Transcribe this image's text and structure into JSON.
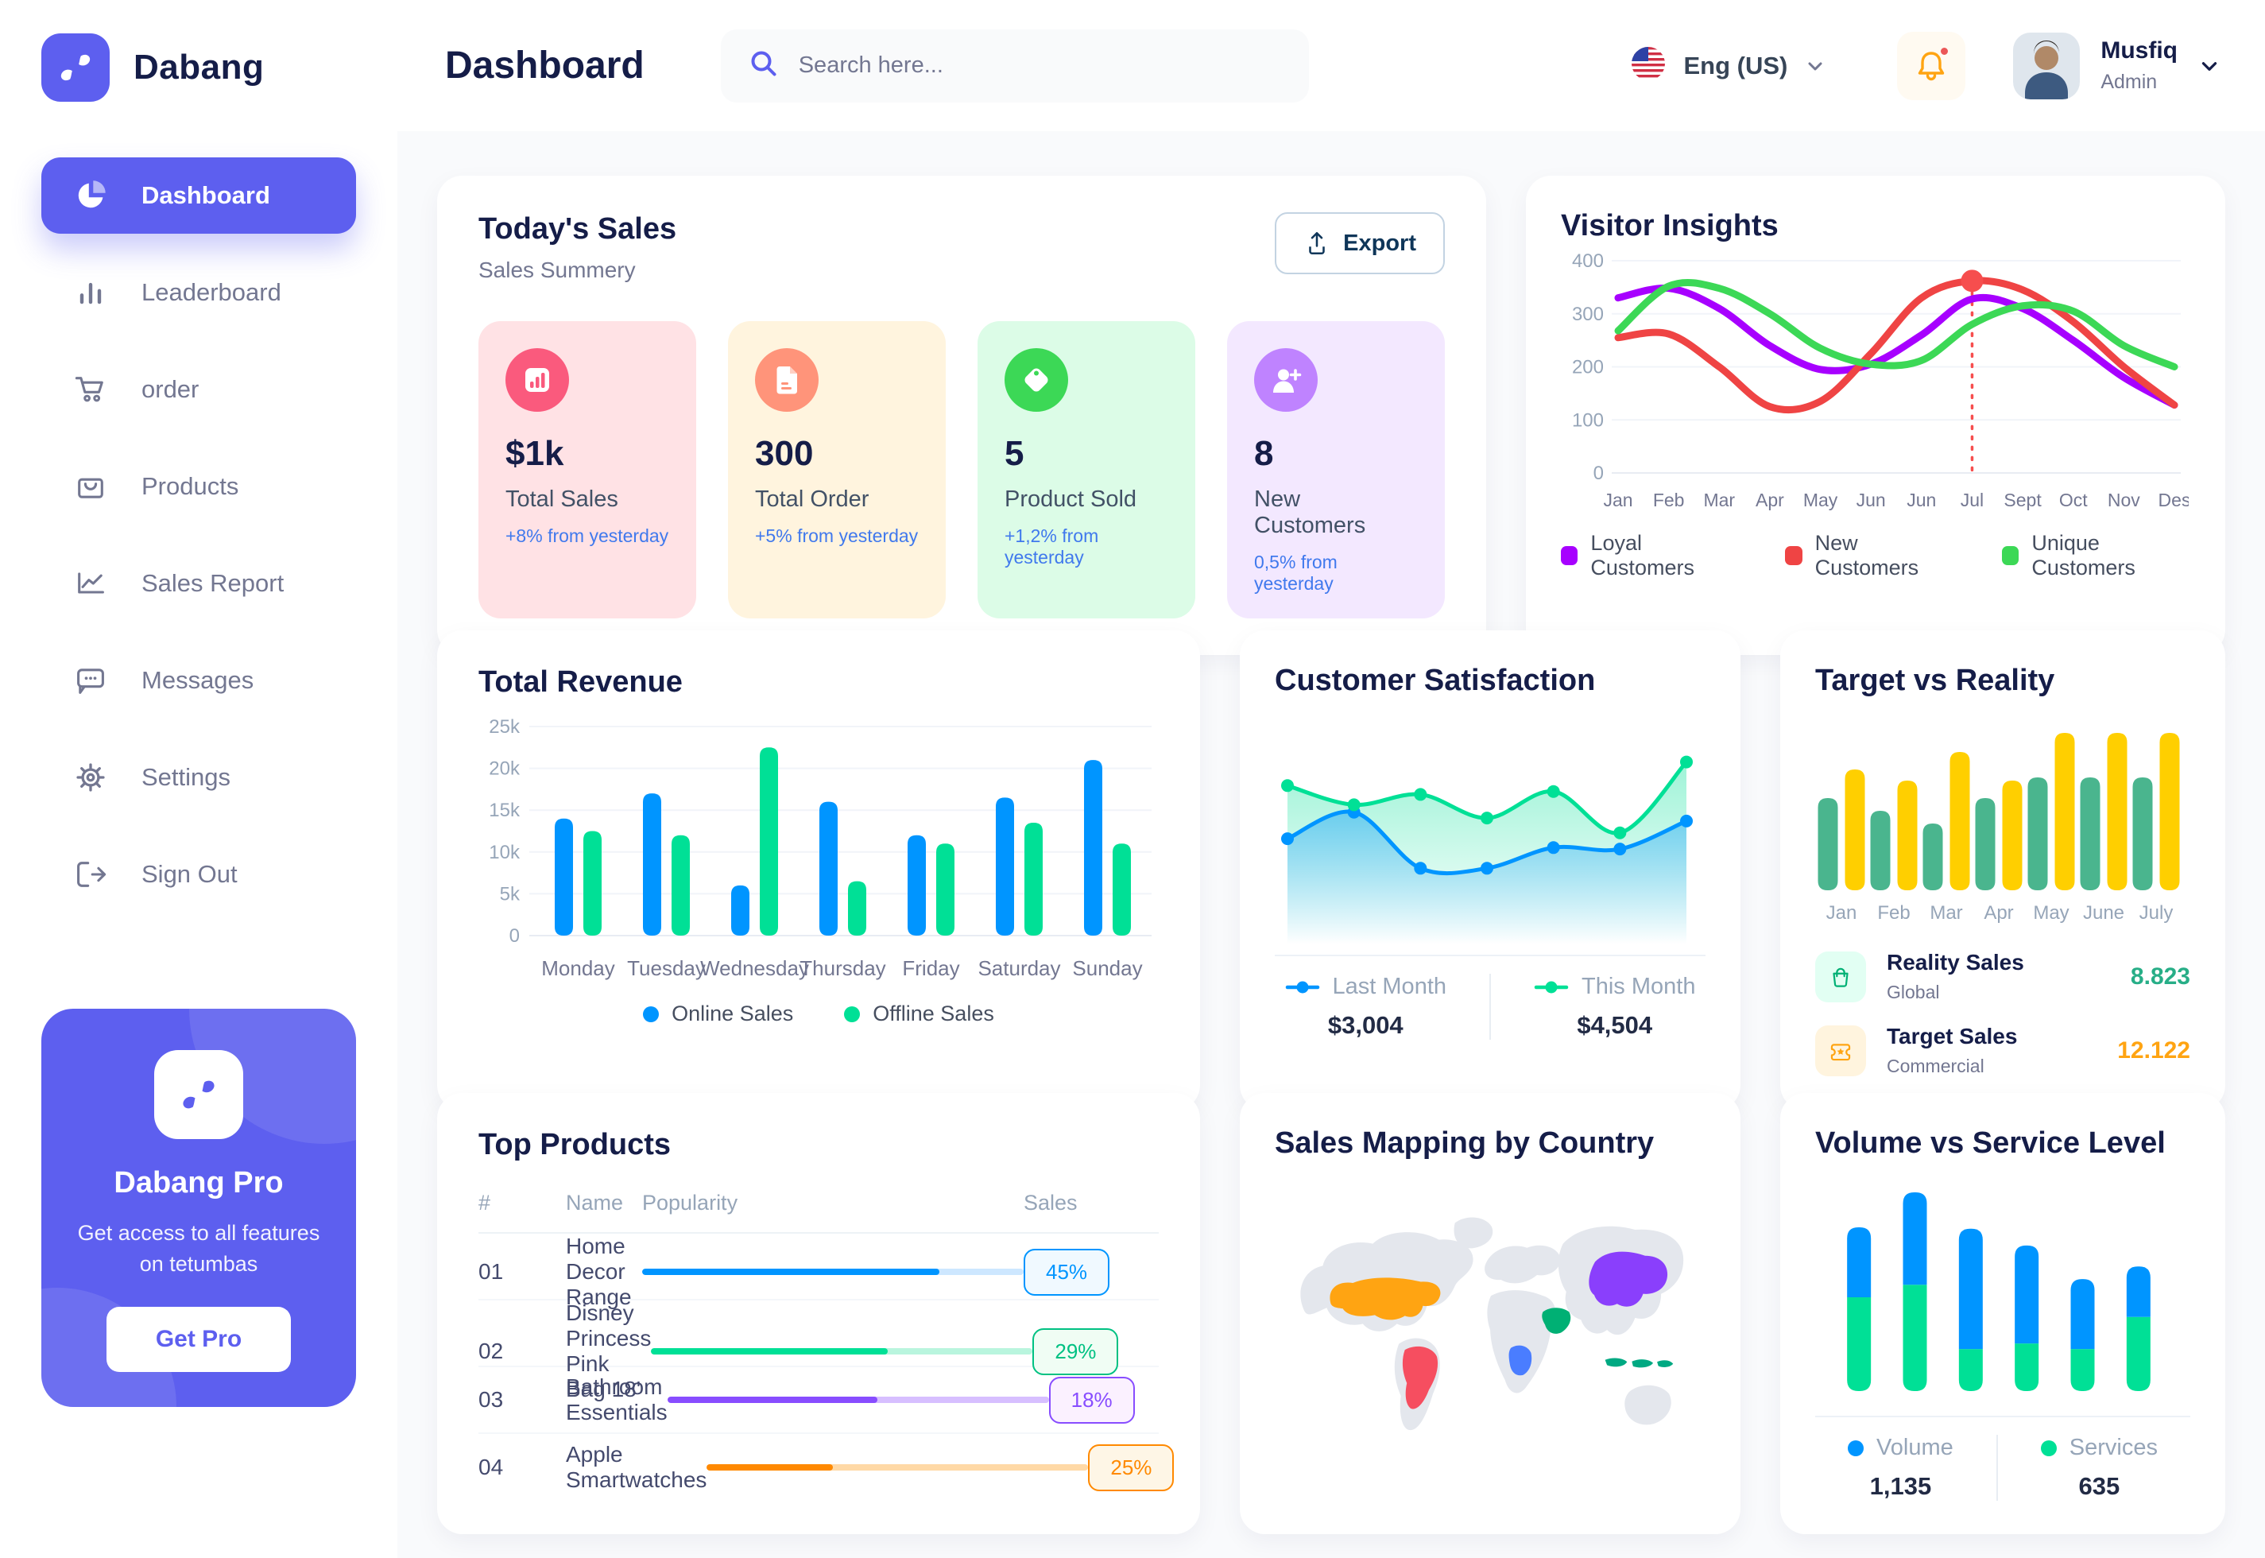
{
  "app": {
    "brand": "Dabang",
    "accent_color": "#5D5FEF",
    "title_color": "#151D48",
    "muted_color": "#737791"
  },
  "header": {
    "title": "Dashboard",
    "search_placeholder": "Search here...",
    "language": "Eng (US)",
    "user_name": "Musfiq",
    "user_role": "Admin"
  },
  "sidebar": {
    "items": [
      {
        "label": "Dashboard",
        "icon": "pie-chart",
        "active": true
      },
      {
        "label": "Leaderboard",
        "icon": "bar-chart",
        "active": false
      },
      {
        "label": "order",
        "icon": "cart",
        "active": false
      },
      {
        "label": "Products",
        "icon": "bag",
        "active": false
      },
      {
        "label": "Sales Report",
        "icon": "line-chart",
        "active": false
      },
      {
        "label": "Messages",
        "icon": "chat",
        "active": false
      },
      {
        "label": "Settings",
        "icon": "gear",
        "active": false
      },
      {
        "label": "Sign Out",
        "icon": "sign-out",
        "active": false
      }
    ],
    "pro_card": {
      "title": "Dabang Pro",
      "subtitle": "Get access to all features on tetumbas",
      "button": "Get Pro"
    }
  },
  "today_sales": {
    "title": "Today's Sales",
    "subtitle": "Sales Summery",
    "export_label": "Export",
    "stats": [
      {
        "value": "$1k",
        "label": "Total Sales",
        "delta": "+8% from yesterday",
        "bg": "#FFE2E5",
        "icon_bg": "#FA5A7D",
        "icon": "chart"
      },
      {
        "value": "300",
        "label": "Total Order",
        "delta": "+5% from yesterday",
        "bg": "#FFF4DE",
        "icon_bg": "#FF947A",
        "icon": "file"
      },
      {
        "value": "5",
        "label": "Product Sold",
        "delta": "+1,2% from yesterday",
        "bg": "#DCFCE7",
        "icon_bg": "#3CD856",
        "icon": "tag"
      },
      {
        "value": "8",
        "label": "New Customers",
        "delta": "0,5% from yesterday",
        "bg": "#F3E8FF",
        "icon_bg": "#BF83FF",
        "icon": "user-plus"
      }
    ]
  },
  "top_products": {
    "title": "Top Products",
    "columns": [
      "#",
      "Name",
      "Popularity",
      "Sales"
    ],
    "rows": [
      {
        "num": "01",
        "name": "Home Decor Range",
        "popularity": 78,
        "bar_color": "#0095FF",
        "track_color": "#CDE7FF",
        "sales": "45%",
        "badge_bg": "#F0F9FF",
        "badge_color": "#0095FF"
      },
      {
        "num": "02",
        "name": "Disney Princess Pink Bag 18'",
        "popularity": 62,
        "bar_color": "#00E096",
        "track_color": "#B9F5DE",
        "sales": "29%",
        "badge_bg": "#F0FDF4",
        "badge_color": "#00C182"
      },
      {
        "num": "03",
        "name": "Bathroom Essentials",
        "popularity": 55,
        "bar_color": "#884DFF",
        "track_color": "#D7BFFF",
        "sales": "18%",
        "badge_bg": "#FBF1FF",
        "badge_color": "#884DFF"
      },
      {
        "num": "04",
        "name": "Apple Smartwatches",
        "popularity": 33,
        "bar_color": "#FF8900",
        "track_color": "#FFD9A6",
        "sales": "25%",
        "badge_bg": "#FEF6E6",
        "badge_color": "#FF8900"
      }
    ]
  },
  "chart_data": [
    {
      "id": "visitor_insights",
      "type": "line",
      "title": "Visitor Insights",
      "x": [
        "Jan",
        "Feb",
        "Mar",
        "Apr",
        "May",
        "Jun",
        "Jun",
        "Jul",
        "Sept",
        "Oct",
        "Nov",
        "Des"
      ],
      "ylim": [
        0,
        400
      ],
      "yticks": [
        0,
        100,
        200,
        300,
        400
      ],
      "grid": true,
      "highlight_x_index": 7,
      "highlight_color": "#F64E4E",
      "legend_position": "bottom",
      "series": [
        {
          "name": "Loyal Customers",
          "color": "#A700FF",
          "values": [
            330,
            348,
            310,
            240,
            195,
            205,
            260,
            328,
            310,
            250,
            180,
            128
          ]
        },
        {
          "name": "New Customers",
          "color": "#EF4444",
          "values": [
            255,
            262,
            200,
            125,
            135,
            225,
            330,
            362,
            345,
            285,
            200,
            128
          ]
        },
        {
          "name": "Unique Customers",
          "color": "#3CD856",
          "values": [
            268,
            352,
            348,
            300,
            235,
            205,
            212,
            280,
            315,
            305,
            240,
            200
          ]
        }
      ]
    },
    {
      "id": "total_revenue",
      "type": "bar",
      "title": "Total Revenue",
      "categories": [
        "Monday",
        "Tuesday",
        "Wednesday",
        "Thursday",
        "Friday",
        "Saturday",
        "Sunday"
      ],
      "ylim": [
        0,
        25
      ],
      "yticks": [
        0,
        5,
        10,
        15,
        20,
        25
      ],
      "ytick_labels": [
        "0",
        "5k",
        "10k",
        "15k",
        "20k",
        "25k"
      ],
      "ylabel": "",
      "xlabel": "",
      "grid": true,
      "legend_position": "bottom",
      "series": [
        {
          "name": "Online Sales",
          "color": "#0095FF",
          "values": [
            14,
            17,
            6,
            16,
            12,
            16.5,
            21
          ]
        },
        {
          "name": "Offline Sales",
          "color": "#00E096",
          "values": [
            12.5,
            12,
            22.5,
            6.5,
            11,
            13.5,
            11
          ]
        }
      ]
    },
    {
      "id": "customer_satisfaction",
      "type": "area",
      "title": "Customer Satisfaction",
      "ylim": [
        0,
        7
      ],
      "legend_position": "bottom",
      "series": [
        {
          "name": "Last Month",
          "total": "$3,004",
          "color": "#0095FF",
          "values": [
            3.2,
            4.1,
            2.2,
            2.2,
            2.9,
            2.85,
            3.8
          ]
        },
        {
          "name": "This Month",
          "total": "$4,504",
          "color": "#00E096",
          "values": [
            5.0,
            4.35,
            4.7,
            3.9,
            4.8,
            3.4,
            5.8
          ]
        }
      ]
    },
    {
      "id": "target_vs_reality",
      "type": "bar",
      "title": "Target vs Reality",
      "categories": [
        "Jan",
        "Feb",
        "Mar",
        "Apr",
        "May",
        "June",
        "July"
      ],
      "ylim": [
        0,
        10.5
      ],
      "legend_position": "bottom",
      "series": [
        {
          "name": "Reality Sales",
          "color": "#4AB58E",
          "values": [
            5.8,
            5.0,
            4.2,
            5.8,
            7.1,
            7.1,
            7.1
          ]
        },
        {
          "name": "Target Sales",
          "color": "#FFCF00",
          "values": [
            7.6,
            6.9,
            8.7,
            6.9,
            9.9,
            9.9,
            9.9
          ]
        }
      ],
      "legend": [
        {
          "title": "Reality Sales",
          "subtitle": "Global",
          "value": "8.823",
          "value_color": "#27AE87",
          "icon": "bag",
          "icon_bg": "#E2FFF3",
          "icon_color": "#00B074"
        },
        {
          "title": "Target Sales",
          "subtitle": "Commercial",
          "value": "12.122",
          "value_color": "#FFA412",
          "icon": "ticket",
          "icon_bg": "#FFF4DE",
          "icon_color": "#FFA412"
        }
      ]
    },
    {
      "id": "volume_service",
      "type": "stacked-bar",
      "title": "Volume vs Service Level",
      "legend_position": "bottom",
      "series": [
        {
          "name": "Volume",
          "total": "1,135",
          "color": "#0095FF",
          "values": [
            250,
            330,
            430,
            350,
            250,
            180
          ]
        },
        {
          "name": "Services",
          "total": "635",
          "color": "#00E096",
          "values": [
            335,
            380,
            150,
            170,
            150,
            265
          ]
        }
      ]
    },
    {
      "id": "sales_map",
      "type": "map",
      "title": "Sales Mapping by Country",
      "region_color": "#E4E7ED",
      "countries": [
        {
          "name": "United States",
          "color": "#FFA412"
        },
        {
          "name": "Brazil",
          "color": "#F64E60"
        },
        {
          "name": "Saudi Arabia",
          "color": "#00B074"
        },
        {
          "name": "DR Congo",
          "color": "#4A7DFF"
        },
        {
          "name": "China",
          "color": "#8A3FFC"
        },
        {
          "name": "Indonesia",
          "color": "#00A982"
        }
      ]
    }
  ]
}
